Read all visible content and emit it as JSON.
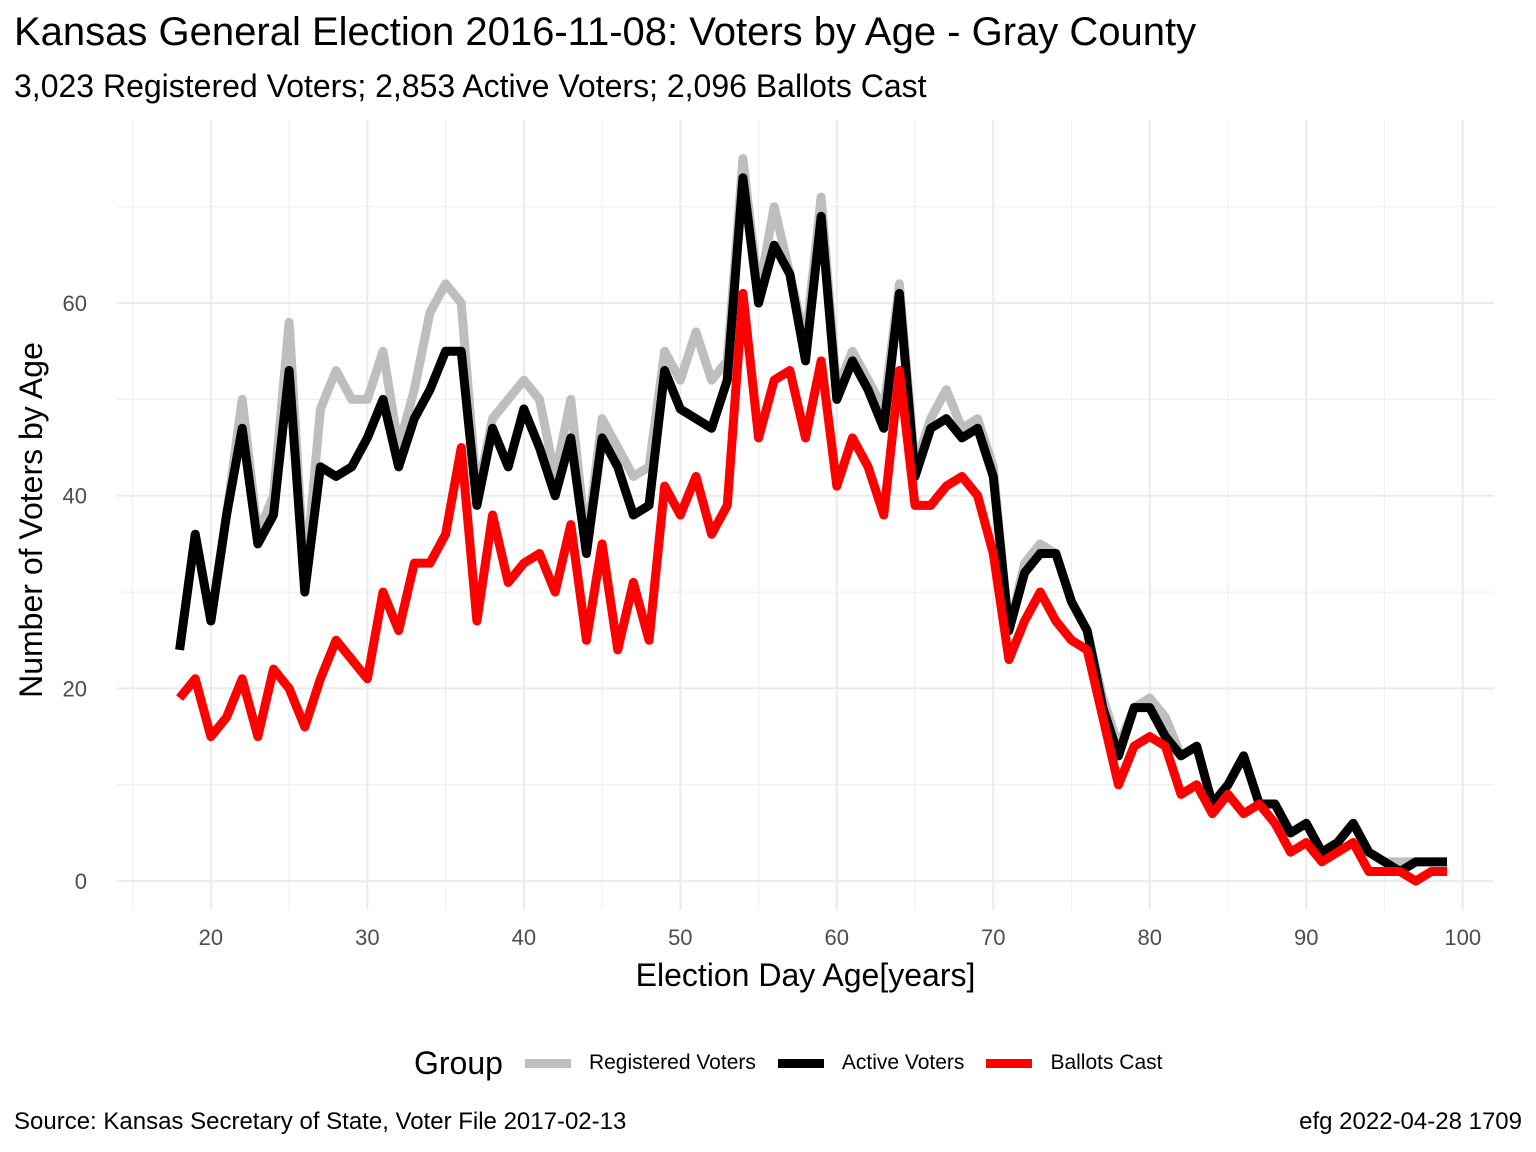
{
  "title": "Kansas General Election 2016-11-08:  Voters by Age - Gray County",
  "subtitle": "3,023 Registered Voters; 2,853 Active Voters; 2,096 Ballots Cast",
  "caption_left": "Source:  Kansas Secretary of State, Voter File  2017-02-13",
  "caption_right": "efg 2022-04-28 1709",
  "legend": {
    "title": "Group",
    "items": [
      {
        "label": "Registered Voters",
        "color": "#BEBEBE"
      },
      {
        "label": "Active Voters",
        "color": "#000000"
      },
      {
        "label": "Ballots Cast",
        "color": "#FF0000"
      }
    ]
  },
  "chart_data": {
    "type": "line",
    "xlabel": "Election Day Age[years]",
    "ylabel": "Number of Voters by Age",
    "xlim": [
      14,
      102
    ],
    "ylim": [
      -3,
      79
    ],
    "x_ticks": [
      20,
      30,
      40,
      50,
      60,
      70,
      80,
      90,
      100
    ],
    "y_ticks": [
      0,
      20,
      40,
      60
    ],
    "grid": true,
    "legend_position": "bottom",
    "x": [
      18,
      19,
      20,
      21,
      22,
      23,
      24,
      25,
      26,
      27,
      28,
      29,
      30,
      31,
      32,
      33,
      34,
      35,
      36,
      37,
      38,
      39,
      40,
      41,
      42,
      43,
      44,
      45,
      46,
      47,
      48,
      49,
      50,
      51,
      52,
      53,
      54,
      55,
      56,
      57,
      58,
      59,
      60,
      61,
      62,
      63,
      64,
      65,
      66,
      67,
      68,
      69,
      70,
      71,
      72,
      73,
      74,
      75,
      76,
      77,
      78,
      79,
      80,
      81,
      82,
      83,
      84,
      85,
      86,
      87,
      88,
      89,
      90,
      91,
      92,
      93,
      94,
      95,
      96,
      97,
      98,
      99
    ],
    "series": [
      {
        "name": "Registered Voters",
        "color": "#BEBEBE",
        "values": [
          24,
          36,
          27,
          38,
          50,
          36,
          40,
          58,
          31,
          49,
          53,
          50,
          50,
          55,
          45,
          51,
          59,
          62,
          60,
          40,
          48,
          50,
          52,
          50,
          42,
          50,
          35,
          48,
          45,
          42,
          43,
          55,
          52,
          57,
          52,
          54,
          75,
          61,
          70,
          63,
          56,
          71,
          51,
          55,
          52,
          49,
          62,
          43,
          48,
          51,
          47,
          48,
          43,
          26,
          33,
          35,
          34,
          29,
          26,
          19,
          14,
          18,
          19,
          17,
          13,
          14,
          8,
          10,
          13,
          8,
          8,
          5,
          6,
          3,
          4,
          6,
          3,
          2,
          2,
          2,
          2,
          2
        ],
        "linewidth": 9
      },
      {
        "name": "Active Voters",
        "color": "#000000",
        "values": [
          24,
          36,
          27,
          38,
          47,
          35,
          38,
          53,
          30,
          43,
          42,
          43,
          46,
          50,
          43,
          48,
          51,
          55,
          55,
          39,
          47,
          43,
          49,
          45,
          40,
          46,
          34,
          46,
          43,
          38,
          39,
          53,
          49,
          48,
          47,
          52,
          73,
          60,
          66,
          63,
          54,
          69,
          50,
          54,
          51,
          47,
          61,
          42,
          47,
          48,
          46,
          47,
          42,
          26,
          32,
          34,
          34,
          29,
          26,
          18,
          13,
          18,
          18,
          15,
          13,
          14,
          8,
          10,
          13,
          8,
          8,
          5,
          6,
          3,
          4,
          6,
          3,
          2,
          1,
          2,
          2,
          2
        ],
        "linewidth": 9
      },
      {
        "name": "Ballots Cast",
        "color": "#FF0000",
        "values": [
          19,
          21,
          15,
          17,
          21,
          15,
          22,
          20,
          16,
          21,
          25,
          23,
          21,
          30,
          26,
          33,
          33,
          36,
          45,
          27,
          38,
          31,
          33,
          34,
          30,
          37,
          25,
          35,
          24,
          31,
          25,
          41,
          38,
          42,
          36,
          39,
          61,
          46,
          52,
          53,
          46,
          54,
          41,
          46,
          43,
          38,
          53,
          39,
          39,
          41,
          42,
          40,
          34,
          23,
          27,
          30,
          27,
          25,
          24,
          17,
          10,
          14,
          15,
          14,
          9,
          10,
          7,
          9,
          7,
          8,
          6,
          3,
          4,
          2,
          3,
          4,
          1,
          1,
          1,
          0,
          1,
          1
        ],
        "linewidth": 9
      }
    ]
  }
}
